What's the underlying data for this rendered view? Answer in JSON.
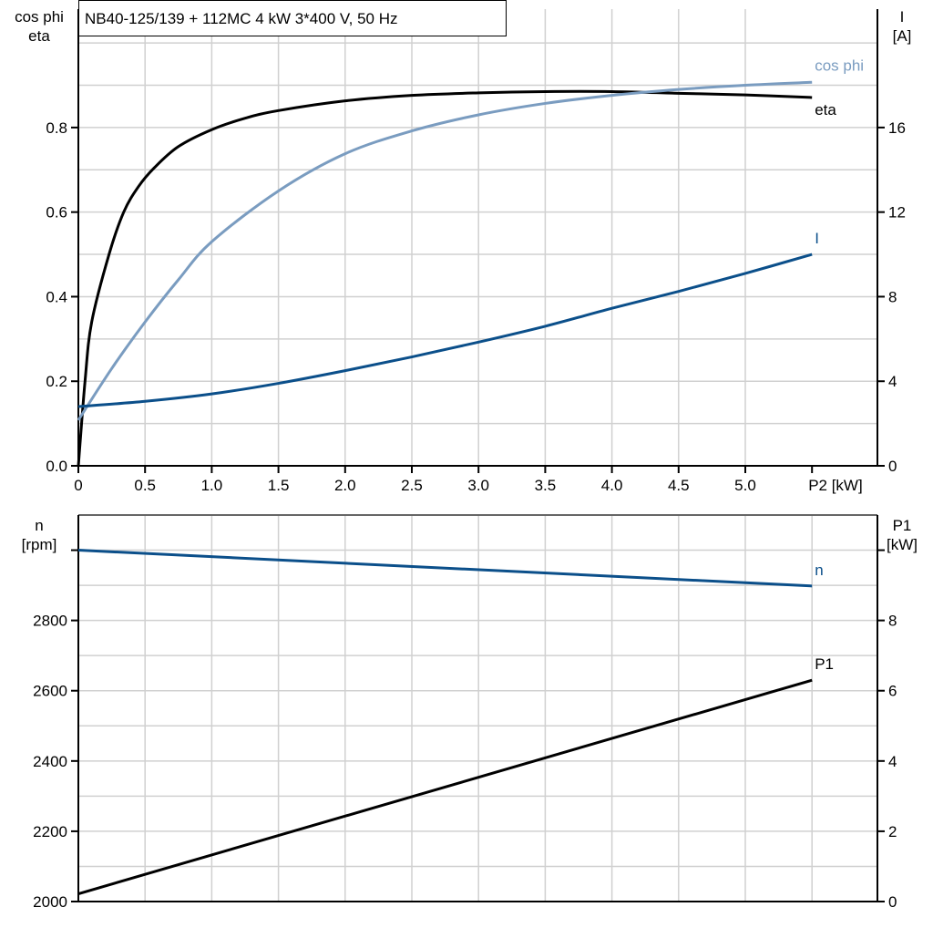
{
  "title": "NB40-125/139 + 112MC   4 kW   3*400 V, 50 Hz",
  "colors": {
    "eta": "#000000",
    "cos_phi": "#7a9cc0",
    "I": "#0b4f8a",
    "n": "#0b4f8a",
    "P1": "#000000",
    "grid": "#d0d0d0"
  },
  "chart_data": [
    {
      "type": "line",
      "grid": true,
      "x_tick_labels": [
        "0",
        "0.5",
        "1.0",
        "1.5",
        "2.0",
        "2.5",
        "3.0",
        "3.5",
        "4.0",
        "4.5",
        "5.0"
      ],
      "x_ticks": [
        0,
        0.5,
        1.0,
        1.5,
        2.0,
        2.5,
        3.0,
        3.5,
        4.0,
        4.5,
        5.0
      ],
      "xlabel": "P2 [kW]",
      "xlim": [
        0,
        6.0
      ],
      "ylabel_left": [
        "cos phi",
        "eta"
      ],
      "ylim_left": [
        0,
        1.08
      ],
      "y_ticks_left": [
        0.0,
        0.2,
        0.4,
        0.6,
        0.8
      ],
      "y_tick_labels_left": [
        "0.0",
        "0.2",
        "0.4",
        "0.6",
        "0.8"
      ],
      "ylabel_right": [
        "I",
        "[A]"
      ],
      "ylim_right": [
        0,
        21.6
      ],
      "y_ticks_right": [
        0,
        4,
        8,
        12,
        16
      ],
      "y_tick_labels_right": [
        "0",
        "4",
        "8",
        "12",
        "16"
      ],
      "series": [
        {
          "name": "eta",
          "axis": "left",
          "color_key": "eta",
          "x": [
            0,
            0.05,
            0.1,
            0.23,
            0.34,
            0.45,
            0.57,
            0.75,
            1.0,
            1.25,
            1.5,
            2.0,
            2.5,
            3.0,
            3.5,
            4.0,
            4.5,
            5.0,
            5.5
          ],
          "y": [
            0,
            0.2,
            0.34,
            0.5,
            0.6,
            0.66,
            0.705,
            0.755,
            0.795,
            0.822,
            0.84,
            0.863,
            0.876,
            0.882,
            0.885,
            0.885,
            0.881,
            0.877,
            0.871
          ]
        },
        {
          "name": "cos phi",
          "axis": "left",
          "color_key": "cos_phi",
          "x": [
            0,
            0.25,
            0.5,
            0.75,
            1.0,
            1.5,
            2.0,
            2.5,
            3.0,
            3.5,
            4.0,
            4.5,
            5.0,
            5.5
          ],
          "y": [
            0.108,
            0.23,
            0.34,
            0.44,
            0.53,
            0.65,
            0.738,
            0.792,
            0.83,
            0.857,
            0.876,
            0.89,
            0.9,
            0.907
          ]
        },
        {
          "name": "I",
          "axis": "right",
          "color_key": "I",
          "x": [
            0,
            0.5,
            1.0,
            1.5,
            2.0,
            2.5,
            3.0,
            3.5,
            4.0,
            4.5,
            5.0,
            5.5
          ],
          "y": [
            2.8,
            3.05,
            3.4,
            3.9,
            4.5,
            5.15,
            5.85,
            6.6,
            7.45,
            8.25,
            9.1,
            10.0
          ]
        }
      ]
    },
    {
      "type": "line",
      "grid": true,
      "x_ticks": [
        0,
        0.5,
        1.0,
        1.5,
        2.0,
        2.5,
        3.0,
        3.5,
        4.0,
        4.5,
        5.0,
        5.5
      ],
      "xlim": [
        0,
        6.0
      ],
      "ylabel_left": [
        "n",
        "[rpm]"
      ],
      "ylim_left": [
        2000,
        3100
      ],
      "y_ticks_left": [
        2000,
        2200,
        2400,
        2600,
        2800,
        3000
      ],
      "y_tick_labels_left": [
        "2000",
        "2200",
        "2400",
        "2600",
        "2800",
        ""
      ],
      "ylabel_right": [
        "P1",
        "[kW]"
      ],
      "ylim_right": [
        0,
        11
      ],
      "y_ticks_right": [
        0,
        2,
        4,
        6,
        8,
        10
      ],
      "y_tick_labels_right": [
        "0",
        "2",
        "4",
        "6",
        "8",
        ""
      ],
      "series": [
        {
          "name": "n",
          "axis": "left",
          "color_key": "n",
          "x": [
            0,
            5.5
          ],
          "y": [
            3000,
            2898
          ]
        },
        {
          "name": "P1",
          "axis": "right",
          "color_key": "P1",
          "x": [
            0,
            5.5
          ],
          "y": [
            0.22,
            6.3
          ]
        }
      ]
    }
  ]
}
